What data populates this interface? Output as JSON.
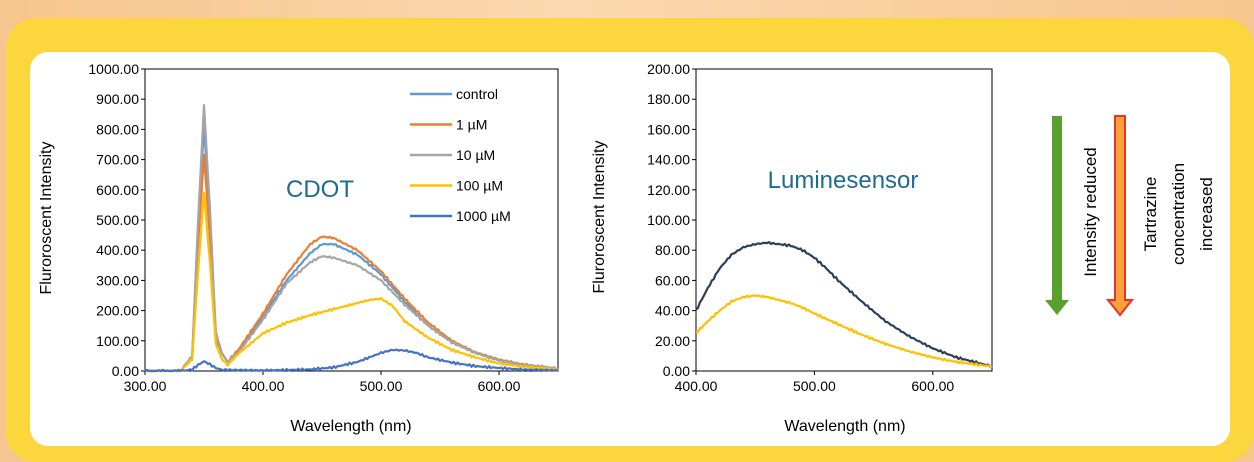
{
  "chart_data": [
    {
      "type": "line",
      "inner_title": "CDOT",
      "inner_title_color": "#1f6b8f",
      "xlabel": "Wavelength (nm)",
      "ylabel": "Fluroroscent Intensity",
      "xlim": [
        300,
        650
      ],
      "ylim": [
        0,
        1000
      ],
      "xticks": [
        300,
        400,
        500,
        600
      ],
      "xtick_labels": [
        "300.00",
        "400.00",
        "500.00",
        "600.00"
      ],
      "yticks": [
        0,
        100,
        200,
        300,
        400,
        500,
        600,
        700,
        800,
        900,
        1000
      ],
      "ytick_labels": [
        "0.00",
        "100.00",
        "200.00",
        "300.00",
        "400.00",
        "500.00",
        "600.00",
        "700.00",
        "800.00",
        "900.00",
        "1000.00"
      ],
      "legend_position": "top-right",
      "series": [
        {
          "name": "control",
          "color": "#5b9bd5",
          "x": [
            300,
            330,
            340,
            345,
            350,
            355,
            360,
            365,
            370,
            380,
            400,
            420,
            440,
            450,
            460,
            480,
            500,
            520,
            540,
            560,
            580,
            600,
            620,
            650
          ],
          "y": [
            0,
            0,
            50,
            480,
            810,
            500,
            120,
            60,
            30,
            70,
            180,
            300,
            390,
            420,
            420,
            385,
            320,
            230,
            150,
            95,
            60,
            35,
            20,
            8
          ]
        },
        {
          "name": "1 µM",
          "color": "#ed7d31",
          "x": [
            300,
            330,
            340,
            345,
            350,
            355,
            360,
            365,
            370,
            380,
            400,
            420,
            440,
            450,
            460,
            480,
            500,
            520,
            540,
            560,
            580,
            600,
            620,
            650
          ],
          "y": [
            0,
            0,
            40,
            420,
            715,
            440,
            110,
            60,
            30,
            75,
            190,
            320,
            420,
            445,
            440,
            400,
            330,
            240,
            160,
            100,
            62,
            38,
            22,
            8
          ]
        },
        {
          "name": "10 µM",
          "color": "#a5a5a5",
          "x": [
            300,
            330,
            340,
            345,
            350,
            355,
            360,
            365,
            370,
            380,
            400,
            420,
            440,
            450,
            460,
            480,
            500,
            520,
            540,
            560,
            580,
            600,
            620,
            650
          ],
          "y": [
            0,
            0,
            50,
            500,
            880,
            540,
            130,
            60,
            30,
            65,
            170,
            290,
            360,
            380,
            375,
            350,
            300,
            220,
            150,
            95,
            60,
            35,
            20,
            8
          ]
        },
        {
          "name": "100 µM",
          "color": "#ffc000",
          "x": [
            300,
            330,
            340,
            345,
            350,
            355,
            360,
            365,
            370,
            380,
            400,
            420,
            440,
            460,
            480,
            490,
            500,
            510,
            520,
            540,
            560,
            580,
            600,
            620,
            650
          ],
          "y": [
            0,
            0,
            40,
            330,
            590,
            360,
            90,
            40,
            20,
            60,
            125,
            160,
            185,
            205,
            225,
            235,
            240,
            215,
            165,
            110,
            70,
            45,
            25,
            15,
            5
          ]
        },
        {
          "name": "1000 µM",
          "color": "#4472c4",
          "x": [
            300,
            330,
            340,
            345,
            350,
            355,
            360,
            365,
            400,
            440,
            460,
            480,
            490,
            500,
            510,
            520,
            530,
            540,
            560,
            580,
            600,
            620,
            650
          ],
          "y": [
            0,
            0,
            5,
            20,
            32,
            22,
            10,
            4,
            2,
            5,
            12,
            30,
            45,
            60,
            70,
            68,
            60,
            45,
            28,
            16,
            10,
            5,
            2
          ]
        }
      ]
    },
    {
      "type": "line",
      "inner_title": "Luminesensor",
      "inner_title_color": "#1f6b8f",
      "xlabel": "Wavelength (nm)",
      "ylabel": "Fluroroscent Intensity",
      "xlim": [
        400,
        650
      ],
      "ylim": [
        0,
        200
      ],
      "xticks": [
        400,
        500,
        600
      ],
      "xtick_labels": [
        "400.00",
        "500.00",
        "600.00"
      ],
      "yticks": [
        0,
        20,
        40,
        60,
        80,
        100,
        120,
        140,
        160,
        180,
        200
      ],
      "ytick_labels": [
        "0.00",
        "20.00",
        "40.00",
        "60.00",
        "80.00",
        "100.00",
        "120.00",
        "140.00",
        "160.00",
        "180.00",
        "200.00"
      ],
      "series": [
        {
          "color": "#2e3f5c",
          "x": [
            400,
            410,
            420,
            430,
            440,
            450,
            460,
            470,
            480,
            490,
            500,
            510,
            520,
            540,
            560,
            580,
            600,
            620,
            640,
            650
          ],
          "y": [
            40,
            55,
            68,
            77,
            82,
            84,
            85,
            84,
            83,
            80,
            75,
            68,
            60,
            46,
            33,
            23,
            15,
            9,
            5,
            3
          ]
        },
        {
          "color": "#ffc000",
          "x": [
            400,
            410,
            420,
            430,
            440,
            450,
            460,
            470,
            480,
            490,
            500,
            520,
            540,
            560,
            580,
            600,
            620,
            640,
            650
          ],
          "y": [
            25,
            33,
            40,
            46,
            49,
            50,
            49,
            47,
            45,
            42,
            38,
            31,
            24,
            18,
            13,
            9,
            6,
            4,
            3
          ]
        }
      ]
    }
  ],
  "side_labels": {
    "intensity": "Intensity  reduced",
    "tartrazine_line1": "Tartrazine",
    "tartrazine_line2": "concentration",
    "tartrazine_line3": "increased"
  },
  "colors": {
    "green_arrow": "#5aa02c",
    "red_arrow_outline": "#e8322a",
    "red_arrow_fill": "#f7a33a"
  }
}
